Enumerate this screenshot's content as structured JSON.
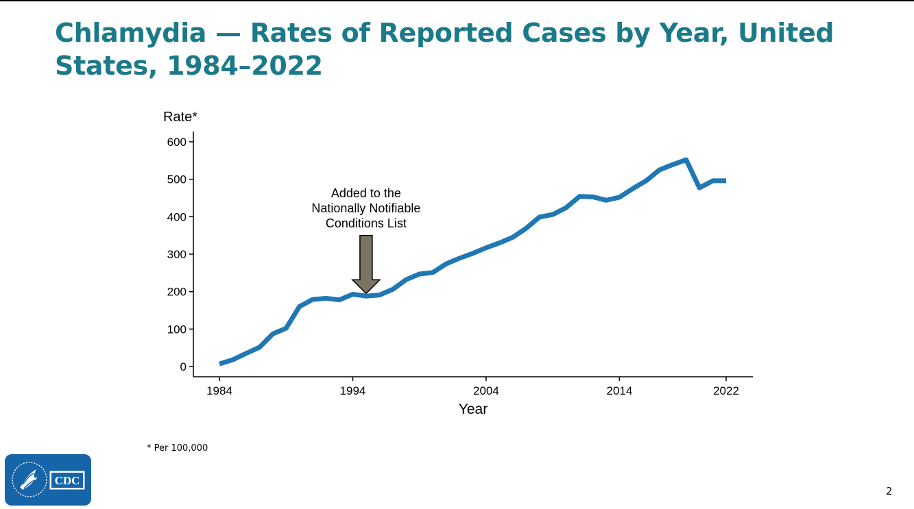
{
  "title": "Chlamydia — Rates of Reported Cases by Year, United States, 1984–2022",
  "footnote": "* Per 100,000",
  "page_number": "2",
  "logo_text": "CDC",
  "colors": {
    "title": "#1b7a8a",
    "series": "#1f78b4",
    "arrow": "#7a7464",
    "logo": "#1565a8"
  },
  "chart_data": {
    "type": "line",
    "ylabel": "Rate*",
    "xlabel": "Year",
    "xlim": [
      1984,
      2022
    ],
    "ylim": [
      0,
      600
    ],
    "x_ticks": [
      1984,
      1994,
      2004,
      2014,
      2022
    ],
    "y_ticks": [
      0,
      100,
      200,
      300,
      400,
      500,
      600
    ],
    "grid": false,
    "annotation": {
      "text": [
        "Added to the",
        "Nationally Notifiable",
        "Conditions List"
      ],
      "year": 1995,
      "arrow_top": 350,
      "arrow_tip": 195
    },
    "series": [
      {
        "x": [
          1984,
          1985,
          1986,
          1987,
          1988,
          1989,
          1990,
          1991,
          1992,
          1993,
          1994,
          1995,
          1996,
          1997,
          1998,
          1999,
          2000,
          2001,
          2002,
          2003,
          2004,
          2005,
          2006,
          2007,
          2008,
          2009,
          2010,
          2011,
          2012,
          2013,
          2014,
          2015,
          2016,
          2017,
          2018,
          2019,
          2020,
          2021,
          2022
        ],
        "values": [
          7,
          18,
          35,
          51,
          87,
          102,
          160,
          179,
          182,
          178,
          193,
          188,
          191,
          206,
          232,
          247,
          251,
          274,
          289,
          302,
          317,
          330,
          345,
          369,
          399,
          406,
          424,
          454,
          453,
          444,
          452,
          475,
          496,
          525,
          539,
          552,
          477,
          496,
          496
        ]
      }
    ]
  }
}
